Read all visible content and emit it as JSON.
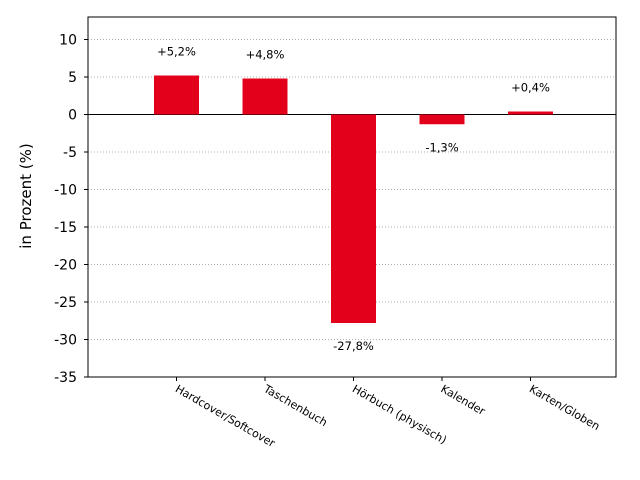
{
  "chart_data": {
    "type": "bar",
    "title": "",
    "xlabel": "",
    "ylabel": "in Prozent (%)",
    "ylim": [
      -35,
      13
    ],
    "yticks": [
      10,
      5,
      0,
      -5,
      -10,
      -15,
      -20,
      -25,
      -30,
      -35
    ],
    "grid": "horizontal-dotted",
    "bar_color": "#e3001b",
    "categories": [
      "Hardcover/Softcover",
      "Taschenbuch",
      "Hörbuch (physisch)",
      "Kalender",
      "Karten/Globen"
    ],
    "values": [
      5.2,
      4.8,
      -27.8,
      -1.3,
      0.4
    ],
    "data_labels": [
      "+5,2%",
      "+4,8%",
      "-27,8%",
      "-1,3%",
      "+0,4%"
    ]
  }
}
